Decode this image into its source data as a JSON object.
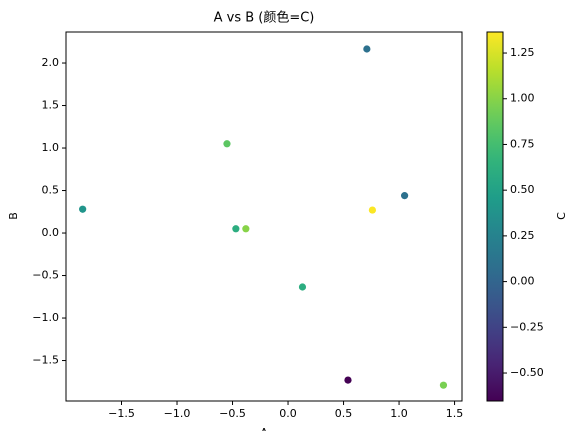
{
  "chart_data": {
    "type": "scatter",
    "title": "A vs B (颜色=C)",
    "x_label": "A",
    "y_label": "B",
    "colorbar_label": "C",
    "colormap": "viridis",
    "x": [
      0.71,
      -0.55,
      -1.85,
      -0.47,
      -0.38,
      0.76,
      1.05,
      0.13,
      0.54,
      1.4
    ],
    "values": [
      2.165,
      1.05,
      0.28,
      0.05,
      0.05,
      0.27,
      0.44,
      -0.635,
      -1.73,
      -1.79
    ],
    "color_values": [
      0.1,
      0.85,
      0.4,
      0.6,
      1.0,
      1.36,
      0.1,
      0.6,
      -0.65,
      0.95
    ],
    "xlim": [
      -2.0,
      1.567
    ],
    "ylim": [
      -1.976,
      2.365
    ],
    "clim": [
      -0.653,
      1.365
    ],
    "xticks": [
      {
        "value": -1.5,
        "label": "−1.5"
      },
      {
        "value": -1.0,
        "label": "−1.0"
      },
      {
        "value": -0.5,
        "label": "−0.5"
      },
      {
        "value": 0.0,
        "label": "0.0"
      },
      {
        "value": 0.5,
        "label": "0.5"
      },
      {
        "value": 1.0,
        "label": "1.0"
      },
      {
        "value": 1.5,
        "label": "1.5"
      }
    ],
    "yticks": [
      {
        "value": -1.5,
        "label": "−1.5"
      },
      {
        "value": -1.0,
        "label": "−1.0"
      },
      {
        "value": -0.5,
        "label": "−0.5"
      },
      {
        "value": 0.0,
        "label": "0.0"
      },
      {
        "value": 0.5,
        "label": "0.5"
      },
      {
        "value": 1.0,
        "label": "1.0"
      },
      {
        "value": 1.5,
        "label": "1.5"
      },
      {
        "value": 2.0,
        "label": "2.0"
      }
    ],
    "cticks": [
      {
        "value": -0.5,
        "label": "−0.50"
      },
      {
        "value": -0.25,
        "label": "−0.25"
      },
      {
        "value": 0.0,
        "label": "0.00"
      },
      {
        "value": 0.25,
        "label": "0.25"
      },
      {
        "value": 0.5,
        "label": "0.50"
      },
      {
        "value": 0.75,
        "label": "0.75"
      },
      {
        "value": 1.0,
        "label": "1.00"
      },
      {
        "value": 1.25,
        "label": "1.25"
      }
    ],
    "grid": false
  }
}
